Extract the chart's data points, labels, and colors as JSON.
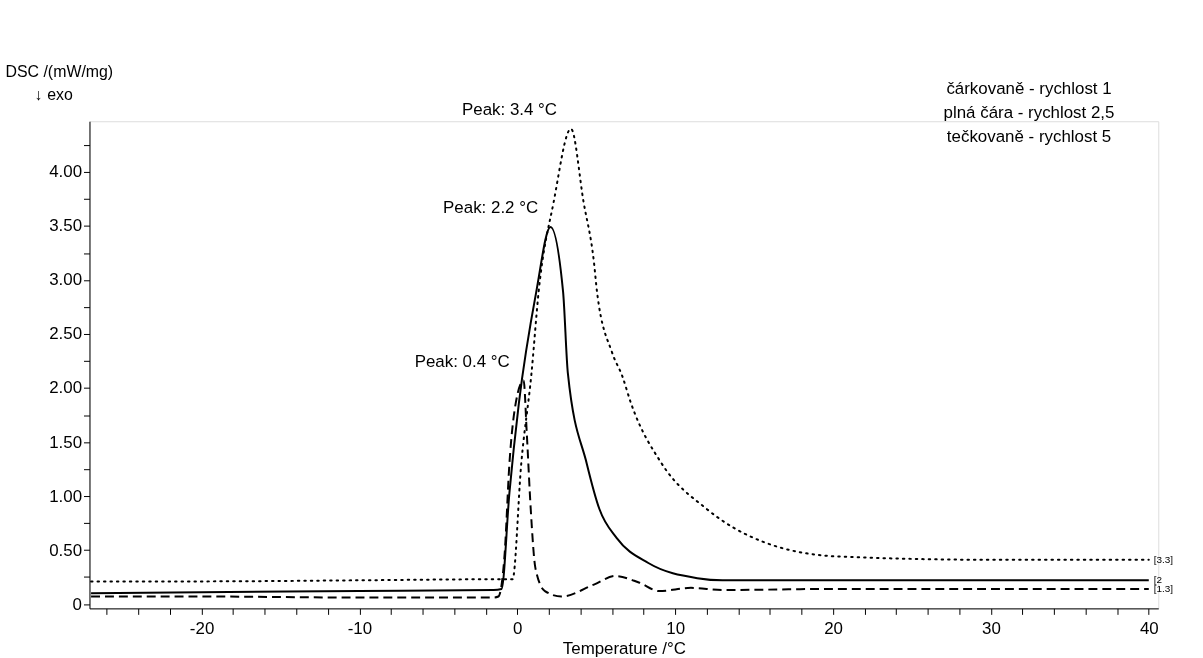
{
  "chart_data": {
    "type": "line",
    "xlabel": "Temperature /°C",
    "ylabel": "DSC /(mW/mg)",
    "xlim": [
      -27.1,
      40.6
    ],
    "ylim": [
      -0.04,
      4.47
    ],
    "xticks": [
      {
        "value": -26,
        "label": null
      },
      {
        "value": -24,
        "label": null
      },
      {
        "value": -22,
        "label": null
      },
      -20,
      {
        "value": -18,
        "label": null
      },
      {
        "value": -16,
        "label": null
      },
      {
        "value": -14,
        "label": null
      },
      {
        "value": -12,
        "label": null
      },
      -10,
      {
        "value": -8,
        "label": null
      },
      {
        "value": -6,
        "label": null
      },
      {
        "value": -4,
        "label": null
      },
      {
        "value": -2,
        "label": null
      },
      0,
      {
        "value": 2,
        "label": null
      },
      {
        "value": 4,
        "label": null
      },
      {
        "value": 6,
        "label": null
      },
      {
        "value": 8,
        "label": null
      },
      10,
      {
        "value": 12,
        "label": null
      },
      {
        "value": 14,
        "label": null
      },
      {
        "value": 16,
        "label": null
      },
      {
        "value": 18,
        "label": null
      },
      20,
      {
        "value": 22,
        "label": null
      },
      {
        "value": 24,
        "label": null
      },
      {
        "value": 26,
        "label": null
      },
      {
        "value": 28,
        "label": null
      },
      30,
      {
        "value": 32,
        "label": null
      },
      {
        "value": 34,
        "label": null
      },
      {
        "value": 36,
        "label": null
      },
      {
        "value": 38,
        "label": null
      },
      40
    ],
    "yticks": [
      0,
      {
        "value": 0.25,
        "label": null
      },
      {
        "value": 0.5,
        "label": "0.50"
      },
      {
        "value": 0.75,
        "label": null
      },
      {
        "value": 1,
        "label": "1.00"
      },
      {
        "value": 1.25,
        "label": null
      },
      {
        "value": 1.5,
        "label": "1.50"
      },
      {
        "value": 1.75,
        "label": null
      },
      {
        "value": 2,
        "label": "2.00"
      },
      {
        "value": 2.25,
        "label": null
      },
      {
        "value": 2.5,
        "label": "2.50"
      },
      {
        "value": 2.75,
        "label": null
      },
      {
        "value": 3,
        "label": "3.00"
      },
      {
        "value": 3.25,
        "label": null
      },
      {
        "value": 3.5,
        "label": "3.50"
      },
      {
        "value": 3.75,
        "label": null
      },
      {
        "value": 4,
        "label": "4.00"
      },
      {
        "value": 4.25,
        "label": null
      }
    ],
    "grid": false,
    "series": [
      {
        "color": "#000000",
        "line_style": "dashed",
        "x": [
          -27,
          -20,
          -10,
          -1.5,
          -1.2,
          -0.8,
          -0.5,
          -0.1,
          0.4,
          0.6,
          0.85,
          1.15,
          1.75,
          2.8,
          4.85,
          6.2,
          7.7,
          9.0,
          11,
          13,
          20,
          30,
          40
        ],
        "values": [
          0.07,
          0.07,
          0.06,
          0.06,
          0.07,
          0.47,
          1.3,
          1.86,
          2.07,
          1.58,
          0.88,
          0.33,
          0.12,
          0.07,
          0.18,
          0.26,
          0.2,
          0.12,
          0.15,
          0.13,
          0.14,
          0.14,
          0.14
        ]
      },
      {
        "color": "#000000",
        "line_style": "solid",
        "x": [
          -27,
          -20,
          -10,
          -1.5,
          -1.0,
          -0.5,
          0.1,
          1.2,
          2.1,
          2.9,
          3.2,
          4.4,
          5.2,
          6.3,
          8.3,
          11.4,
          13,
          20,
          30,
          40
        ],
        "values": [
          0.1,
          0.11,
          0.12,
          0.13,
          0.14,
          1.03,
          1.86,
          2.89,
          3.49,
          2.89,
          2.14,
          1.3,
          0.88,
          0.61,
          0.38,
          0.24,
          0.22,
          0.22,
          0.22,
          0.22
        ]
      },
      {
        "color": "#000000",
        "line_style": "dotted",
        "x": [
          -27,
          -20,
          -10,
          -1,
          -0.3,
          0.25,
          0.9,
          1.35,
          2.3,
          3.4,
          4.2,
          4.85,
          5.05,
          6.0,
          6.65,
          7.2,
          9.15,
          12.0,
          15.5,
          20.4,
          30,
          40
        ],
        "values": [
          0.21,
          0.21,
          0.22,
          0.23,
          0.23,
          1.3,
          2.14,
          2.89,
          3.72,
          4.4,
          3.72,
          3.17,
          2.89,
          2.33,
          2.11,
          1.86,
          1.3,
          0.88,
          0.58,
          0.44,
          0.41,
          0.41
        ]
      }
    ],
    "annotations": [
      "↓  exo",
      "čárkovaně - rychlost 1",
      "plná čára - rychlost 2,5",
      "tečkovaně - rychlost 5",
      {
        "text": "Peak: 3.4 °C",
        "x": 3.4,
        "y": 4.4
      },
      {
        "text": "Peak: 2.2 °C",
        "x": 2.2,
        "y": 3.49
      },
      {
        "text": "Peak: 0.4 °C",
        "x": 0.4,
        "y": 2.07
      },
      {
        "text": "[3.3]",
        "x": 40,
        "y": 0.41
      },
      {
        "text": "[2",
        "x": 40,
        "y": 0.225
      },
      {
        "text": "[1.3]",
        "x": 40,
        "y": 0.14
      }
    ]
  }
}
